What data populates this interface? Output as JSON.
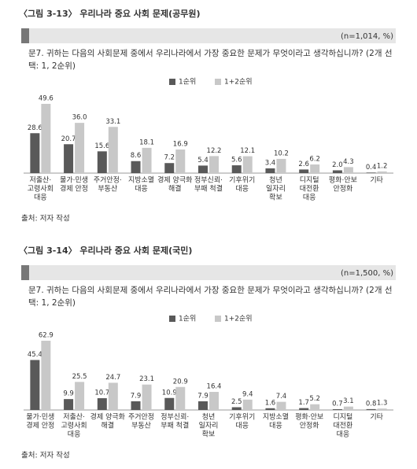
{
  "chart_data": [
    {
      "type": "bar",
      "title": "〈그림 3-13〉 우리나라 중요 사회 문제(공무원)",
      "note": "(n=1,014, %)",
      "question": [
        "문7. 귀하는 다음의 사회문제 중에서 우리나라에서 가장 중요한 문제가 무엇이라고 생각하십니까? (2개 선",
        "택: 1, 2순위)"
      ],
      "categories": [
        [
          "저출산·",
          "고령사회",
          "대응"
        ],
        [
          "물가·민생",
          "경제 안정"
        ],
        [
          "주거안정·",
          "부동산"
        ],
        [
          "지방소멸",
          "대응"
        ],
        [
          "경제 양극화",
          "해결"
        ],
        [
          "정부신뢰·",
          "부패 척결"
        ],
        [
          "기후위기",
          "대응"
        ],
        [
          "청년",
          "일자리",
          "확보"
        ],
        [
          "디지털",
          "대전환",
          "대응"
        ],
        [
          "평화·안보",
          "안정화"
        ],
        [
          "기타"
        ]
      ],
      "series": [
        {
          "name": "1순위",
          "color": "#595959",
          "values": [
            28.6,
            20.7,
            15.6,
            8.6,
            7.2,
            5.4,
            5.6,
            3.4,
            2.6,
            2.0,
            0.4
          ],
          "value_labels": [
            "28.6",
            "20.7",
            "15.6",
            "8.6",
            "7.2",
            "5.4",
            "5.6",
            "3.4",
            "2.6",
            "2.0",
            "0.4"
          ]
        },
        {
          "name": "1+2순위",
          "color": "#c8c8c8",
          "values": [
            49.6,
            36.0,
            33.1,
            18.1,
            16.9,
            12.2,
            12.1,
            10.2,
            6.2,
            4.3,
            1.2
          ],
          "value_labels": [
            "49.6",
            "36.0",
            "33.1",
            "18.1",
            "16.9",
            "12.2",
            "12.1",
            "10.2",
            "6.2",
            "4.3",
            "1.2"
          ]
        }
      ],
      "source": "출처: 저자 작성"
    },
    {
      "type": "bar",
      "title": "〈그림 3-14〉 우리나라 중요 사회 문제(국민)",
      "note": "(n=1,500, %)",
      "question": [
        "문7. 귀하는 다음의 사회문제 중에서 우리나라에서 가장 중요한 문제가 무엇이라고 생각하십니까? (2개 선",
        "택: 1, 2순위)"
      ],
      "categories": [
        [
          "물가·민생",
          "경제 안정"
        ],
        [
          "저출산·",
          "고령사회",
          "대응"
        ],
        [
          "경제 양극화",
          "해결"
        ],
        [
          "주거안정",
          "부동산"
        ],
        [
          "정부신뢰·",
          "부패 척결"
        ],
        [
          "청년",
          "일자리",
          "확보"
        ],
        [
          "기후위기",
          "대응"
        ],
        [
          "지방소멸",
          "대응"
        ],
        [
          "평화·안보",
          "안정화"
        ],
        [
          "디지털",
          "대전환",
          "대응"
        ],
        [
          "기타"
        ]
      ],
      "series": [
        {
          "name": "1순위",
          "color": "#595959",
          "values": [
            45.4,
            9.9,
            10.7,
            7.9,
            10.9,
            7.9,
            2.5,
            1.6,
            1.7,
            0.7,
            0.8
          ],
          "value_labels": [
            "45.4",
            "9.9",
            "10.7",
            "7.9",
            "10.9",
            "7.9",
            "2.5",
            "1.6",
            "1.7",
            "0.7",
            "0.8"
          ]
        },
        {
          "name": "1+2순위",
          "color": "#c8c8c8",
          "values": [
            62.9,
            25.5,
            24.7,
            23.1,
            20.9,
            16.4,
            9.4,
            7.4,
            5.2,
            3.1,
            1.3
          ],
          "value_labels": [
            "62.9",
            "25.5",
            "24.7",
            "23.1",
            "20.9",
            "16.4",
            "9.4",
            "7.4",
            "5.2",
            "3.1",
            "1.3"
          ]
        }
      ],
      "source": "출처: 저자 작성"
    }
  ]
}
